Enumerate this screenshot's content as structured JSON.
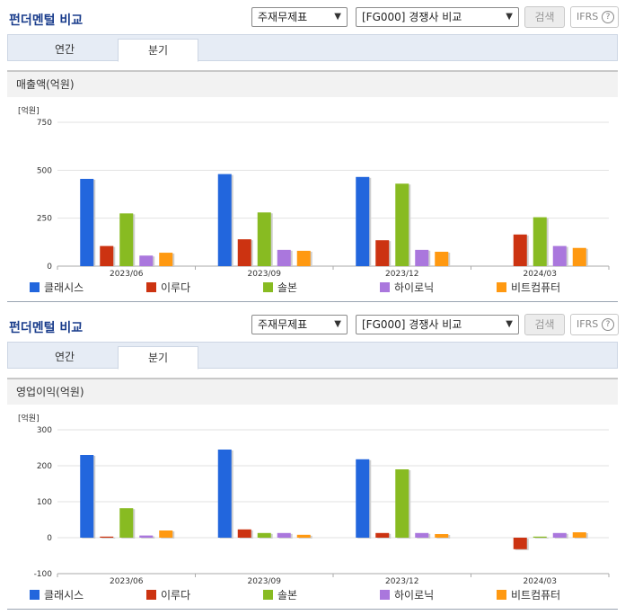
{
  "panels": [
    {
      "title": "펀더멘털 비교",
      "select_statement": "주재무제표",
      "select_compare": "[FG000] 경쟁사 비교",
      "search_label": "검색",
      "ifrs_label": "IFRS",
      "help_glyph": "?",
      "tabs": [
        "연간",
        "분기"
      ],
      "active_tab": "분기",
      "subtitle": "매출액(억원)",
      "unit": "[억원]"
    },
    {
      "title": "펀더멘털 비교",
      "select_statement": "주재무제표",
      "select_compare": "[FG000] 경쟁사 비교",
      "search_label": "검색",
      "ifrs_label": "IFRS",
      "help_glyph": "?",
      "tabs": [
        "연간",
        "분기"
      ],
      "active_tab": "분기",
      "subtitle": "영업이익(억원)",
      "unit": "[억원]"
    }
  ],
  "legend": [
    {
      "name": "클래시스",
      "color": "#2266dd"
    },
    {
      "name": "이루다",
      "color": "#cc3311"
    },
    {
      "name": "솔본",
      "color": "#88bb22"
    },
    {
      "name": "하이로닉",
      "color": "#aa77dd"
    },
    {
      "name": "비트컴퓨터",
      "color": "#ff9911"
    }
  ],
  "chart_data": [
    {
      "type": "bar",
      "title": "매출액(억원)",
      "ylabel": "[억원]",
      "categories": [
        "2023/06",
        "2023/09",
        "2023/12",
        "2024/03"
      ],
      "ylim": [
        0,
        750
      ],
      "yticks": [
        0,
        250,
        500,
        750
      ],
      "series": [
        {
          "name": "클래시스",
          "values": [
            455,
            480,
            465,
            null
          ]
        },
        {
          "name": "이루다",
          "values": [
            105,
            140,
            135,
            165
          ]
        },
        {
          "name": "솔본",
          "values": [
            275,
            280,
            430,
            255
          ]
        },
        {
          "name": "하이로닉",
          "values": [
            55,
            85,
            85,
            105
          ]
        },
        {
          "name": "비트컴퓨터",
          "values": [
            70,
            80,
            75,
            95
          ]
        }
      ]
    },
    {
      "type": "bar",
      "title": "영업이익(억원)",
      "ylabel": "[억원]",
      "categories": [
        "2023/06",
        "2023/09",
        "2023/12",
        "2024/03"
      ],
      "ylim": [
        -100,
        300
      ],
      "yticks": [
        -100,
        0,
        100,
        200,
        300
      ],
      "series": [
        {
          "name": "클래시스",
          "values": [
            230,
            245,
            218,
            null
          ]
        },
        {
          "name": "이루다",
          "values": [
            3,
            23,
            13,
            -32
          ]
        },
        {
          "name": "솔본",
          "values": [
            82,
            13,
            190,
            3
          ]
        },
        {
          "name": "하이로닉",
          "values": [
            6,
            13,
            13,
            13
          ]
        },
        {
          "name": "비트컴퓨터",
          "values": [
            20,
            8,
            10,
            15
          ]
        }
      ]
    }
  ]
}
